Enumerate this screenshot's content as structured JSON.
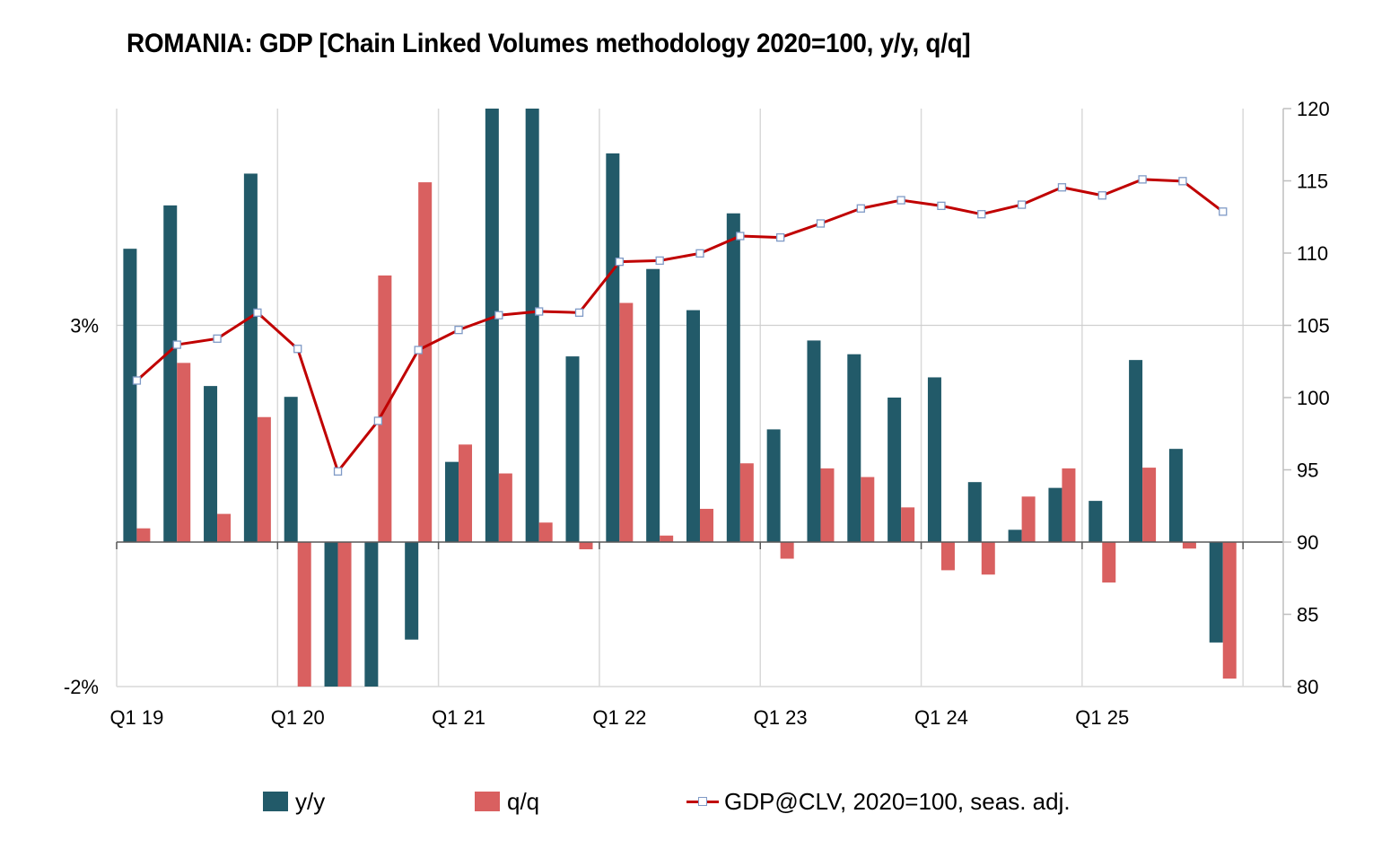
{
  "chart_data": {
    "type": "bar+line",
    "title": "ROMANIA: GDP [Chain Linked Volumes methodology 2020=100, y/y, q/q]",
    "categories": [
      "Q1 19",
      "Q2 19",
      "Q3 19",
      "Q4 19",
      "Q1 20",
      "Q2 20",
      "Q3 20",
      "Q4 20",
      "Q1 21",
      "Q2 21",
      "Q3 21",
      "Q4 21",
      "Q1 22",
      "Q2 22",
      "Q3 22",
      "Q4 22",
      "Q1 23",
      "Q2 23",
      "Q3 23",
      "Q4 23",
      "Q1 24",
      "Q2 24",
      "Q3 24",
      "Q4 24",
      "Q1 25",
      "Q2 25",
      "Q3 25",
      "Q4 25"
    ],
    "x_tick_labels": [
      "Q1 19",
      "Q1 20",
      "Q1 21",
      "Q1 22",
      "Q1 23",
      "Q1 24",
      "Q1 25"
    ],
    "x_tick_every": 4,
    "extra_empty_categories": 1,
    "series": [
      {
        "name": "y/y",
        "type": "bar",
        "axis": "left",
        "color": "#225a69",
        "values": [
          4.06,
          4.66,
          2.16,
          5.1,
          2.01,
          -2.0,
          -2.0,
          -1.35,
          1.11,
          6.0,
          6.0,
          2.57,
          5.38,
          3.78,
          3.21,
          4.55,
          1.56,
          2.79,
          2.6,
          2.0,
          2.28,
          0.83,
          0.17,
          0.75,
          0.57,
          2.52,
          1.29,
          -1.39
        ],
        "clipped_at_axis_limit": [
          "Q2 20",
          "Q3 20",
          "Q2 21",
          "Q3 21"
        ]
      },
      {
        "name": "q/q",
        "type": "bar",
        "axis": "left",
        "color": "#d96060",
        "values": [
          0.19,
          2.48,
          0.39,
          1.73,
          -2.0,
          -2.0,
          3.69,
          4.98,
          1.35,
          0.95,
          0.27,
          -0.1,
          3.31,
          0.09,
          0.46,
          1.09,
          -0.23,
          1.02,
          0.9,
          0.48,
          -0.39,
          -0.45,
          0.63,
          1.02,
          -0.56,
          1.03,
          -0.09,
          -1.89
        ],
        "clipped_at_axis_limit": [
          "Q1 20",
          "Q2 20"
        ]
      },
      {
        "name": "GDP@CLV, 2020=100, seas. adj.",
        "type": "line",
        "axis": "right",
        "color": "#c00000",
        "marker": "square",
        "values": [
          101.18,
          103.66,
          104.08,
          105.88,
          103.37,
          94.89,
          98.39,
          103.29,
          104.68,
          105.7,
          105.96,
          105.88,
          109.4,
          109.48,
          109.98,
          111.18,
          111.08,
          112.05,
          113.09,
          113.66,
          113.27,
          112.69,
          113.35,
          114.55,
          113.99,
          115.1,
          114.98,
          112.87
        ]
      }
    ],
    "left_axis": {
      "ylim": [
        -2,
        6
      ],
      "tick_values": [
        3,
        -2
      ],
      "tick_labels": [
        "3%",
        "-2%"
      ],
      "gridlines": [
        3
      ]
    },
    "right_axis": {
      "ylim": [
        80,
        120
      ],
      "tick_values": [
        120,
        115,
        110,
        105,
        100,
        95,
        90,
        85,
        80
      ],
      "tick_labels": [
        "120",
        "115",
        "110",
        "105",
        "100",
        "95",
        "90",
        "85",
        "80"
      ]
    },
    "grid": {
      "vertical_every_year": true,
      "horizontal": [
        3
      ]
    },
    "legend": {
      "placement": "bottom",
      "entries": [
        "y/y",
        "q/q",
        "GDP@CLV, 2020=100, seas. adj."
      ]
    },
    "xlabel": "",
    "ylabel": ""
  }
}
